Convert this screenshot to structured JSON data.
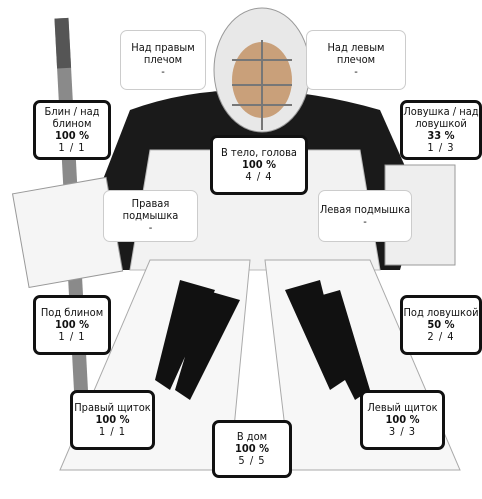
{
  "zones": [
    {
      "label": "Над правым плечом",
      "value": "-"
    },
    {
      "label": "Над левым плечом",
      "value": "-"
    },
    {
      "label": "Блин / над блином",
      "pct": "100 %",
      "count": "1 / 1"
    },
    {
      "label": "Ловушка / над ловушкой",
      "pct": "33 %",
      "count": "1 / 3"
    },
    {
      "label": "В тело, голова",
      "pct": "100 %",
      "count": "4 / 4"
    },
    {
      "label": "Правая подмышка",
      "value": "-"
    },
    {
      "label": "Левая подмышка",
      "value": "-"
    },
    {
      "label": "Под блином",
      "pct": "100 %",
      "count": "1 / 1"
    },
    {
      "label": "Под ловушкой",
      "pct": "50 %",
      "count": "2 / 4"
    },
    {
      "label": "Правый щиток",
      "pct": "100 %",
      "count": "1 / 1"
    },
    {
      "label": "Левый щиток",
      "pct": "100 %",
      "count": "3 / 3"
    },
    {
      "label": "В дом",
      "pct": "100 %",
      "count": "5 / 5"
    }
  ]
}
